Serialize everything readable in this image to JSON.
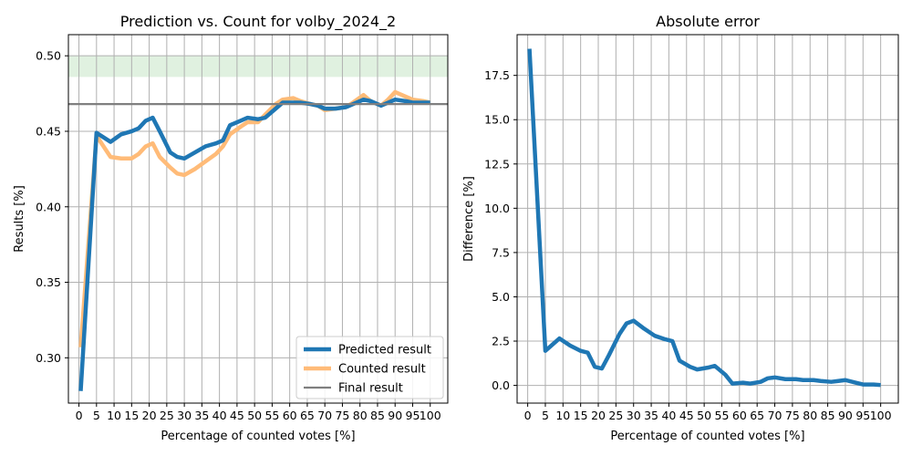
{
  "figure": {
    "background": "#ffffff"
  },
  "chart_data": [
    {
      "type": "line",
      "title": "Prediction vs. Count for volby_2024_2",
      "xlabel": "Percentage of counted votes [%]",
      "ylabel": "Results [%]",
      "xlim": [
        -3,
        105
      ],
      "ylim": [
        0.27,
        0.514
      ],
      "xticks": [
        0,
        5,
        10,
        15,
        20,
        25,
        30,
        35,
        40,
        45,
        50,
        55,
        60,
        65,
        70,
        75,
        80,
        85,
        90,
        95,
        100
      ],
      "yticks": [
        0.3,
        0.35,
        0.4,
        0.45,
        0.5
      ],
      "ytick_labels": [
        "0.30",
        "0.35",
        "0.40",
        "0.45",
        "0.50"
      ],
      "grid": true,
      "band": {
        "y0": 0.486,
        "y1": 0.5,
        "color": "#2ca02c",
        "opacity": 0.15
      },
      "series": [
        {
          "name": "Counted result",
          "color": "#ffbb78",
          "x": [
            0.5,
            5,
            9,
            12,
            15,
            17,
            19,
            21,
            23,
            26,
            28,
            30,
            33,
            36,
            39,
            41,
            43,
            46,
            48,
            51,
            53,
            56,
            58,
            61,
            63,
            66,
            68,
            70,
            73,
            76,
            78,
            81,
            83,
            86,
            88,
            90,
            93,
            95,
            98,
            100
          ],
          "y": [
            0.307,
            0.447,
            0.433,
            0.432,
            0.432,
            0.435,
            0.44,
            0.442,
            0.433,
            0.426,
            0.422,
            0.421,
            0.425,
            0.43,
            0.435,
            0.44,
            0.448,
            0.453,
            0.456,
            0.456,
            0.461,
            0.468,
            0.471,
            0.472,
            0.47,
            0.468,
            0.467,
            0.464,
            0.465,
            0.466,
            0.469,
            0.474,
            0.47,
            0.467,
            0.471,
            0.476,
            0.473,
            0.471,
            0.47,
            0.469
          ]
        },
        {
          "name": "Predicted result",
          "color": "#1f77b4",
          "x": [
            0.5,
            5,
            9,
            12,
            15,
            17,
            19,
            21,
            23,
            26,
            28,
            30,
            33,
            36,
            39,
            41,
            43,
            46,
            48,
            51,
            53,
            56,
            58,
            61,
            63,
            66,
            68,
            70,
            73,
            76,
            78,
            81,
            83,
            86,
            88,
            90,
            93,
            95,
            98,
            100
          ],
          "y": [
            0.278,
            0.449,
            0.443,
            0.448,
            0.45,
            0.452,
            0.457,
            0.459,
            0.45,
            0.436,
            0.433,
            0.432,
            0.436,
            0.44,
            0.442,
            0.444,
            0.454,
            0.457,
            0.459,
            0.458,
            0.459,
            0.465,
            0.469,
            0.469,
            0.469,
            0.468,
            0.467,
            0.465,
            0.465,
            0.466,
            0.468,
            0.471,
            0.47,
            0.467,
            0.469,
            0.471,
            0.47,
            0.469,
            0.469,
            0.469
          ]
        },
        {
          "name": "Final result",
          "color": "#7f7f7f",
          "x": [
            -3,
            105
          ],
          "y": [
            0.468,
            0.468
          ]
        }
      ],
      "legend": {
        "placement": "bottom-right",
        "entries": [
          "Predicted result",
          "Counted result",
          "Final result"
        ]
      }
    },
    {
      "type": "line",
      "title": "Absolute error",
      "xlabel": "Percentage of counted votes [%]",
      "ylabel": "Difference [%]",
      "xlim": [
        -3,
        105
      ],
      "ylim": [
        -1.0,
        19.8
      ],
      "xticks": [
        0,
        5,
        10,
        15,
        20,
        25,
        30,
        35,
        40,
        45,
        50,
        55,
        60,
        65,
        70,
        75,
        80,
        85,
        90,
        95,
        100
      ],
      "yticks": [
        0.0,
        2.5,
        5.0,
        7.5,
        10.0,
        12.5,
        15.0,
        17.5
      ],
      "ytick_labels": [
        "0.0",
        "2.5",
        "5.0",
        "7.5",
        "10.0",
        "12.5",
        "15.0",
        "17.5"
      ],
      "grid": true,
      "series": [
        {
          "color": "#1f77b4",
          "x": [
            0.5,
            5,
            9,
            12,
            15,
            17,
            19,
            21,
            23,
            26,
            28,
            30,
            33,
            36,
            39,
            41,
            43,
            46,
            48,
            51,
            53,
            56,
            58,
            61,
            63,
            66,
            68,
            70,
            73,
            76,
            78,
            81,
            83,
            86,
            88,
            90,
            93,
            95,
            98,
            100
          ],
          "y": [
            19.0,
            1.95,
            2.65,
            2.25,
            1.95,
            1.85,
            1.05,
            0.95,
            1.7,
            2.9,
            3.5,
            3.65,
            3.2,
            2.8,
            2.6,
            2.5,
            1.4,
            1.05,
            0.9,
            1.0,
            1.1,
            0.6,
            0.1,
            0.15,
            0.1,
            0.2,
            0.4,
            0.45,
            0.35,
            0.35,
            0.3,
            0.3,
            0.25,
            0.2,
            0.25,
            0.3,
            0.15,
            0.05,
            0.05,
            0.02
          ]
        }
      ]
    }
  ]
}
